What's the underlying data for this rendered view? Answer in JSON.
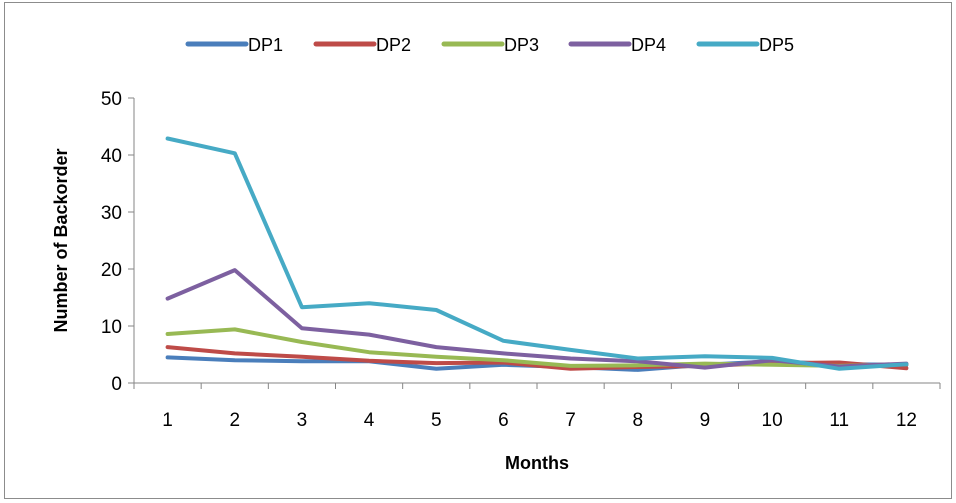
{
  "chart_data": {
    "type": "line",
    "title": "",
    "xlabel": "Months",
    "ylabel": "Number of Backorder",
    "x": [
      1,
      2,
      3,
      4,
      5,
      6,
      7,
      8,
      9,
      10,
      11,
      12
    ],
    "ylim": [
      0,
      50
    ],
    "yticks": [
      0,
      10,
      20,
      30,
      40,
      50
    ],
    "grid": false,
    "legend_position": "top",
    "series": [
      {
        "name": "DP1",
        "color": "#4a7ebb",
        "values": [
          4.5,
          4.0,
          3.8,
          3.8,
          2.5,
          3.2,
          2.8,
          2.3,
          3.2,
          3.8,
          3.3,
          3.2
        ]
      },
      {
        "name": "DP2",
        "color": "#be4b48",
        "values": [
          6.3,
          5.2,
          4.6,
          3.9,
          3.5,
          3.6,
          2.5,
          2.8,
          3.0,
          3.5,
          3.6,
          2.6
        ]
      },
      {
        "name": "DP3",
        "color": "#98b954",
        "values": [
          8.6,
          9.4,
          7.2,
          5.4,
          4.6,
          4.0,
          3.0,
          3.1,
          3.4,
          3.2,
          3.0,
          3.3
        ]
      },
      {
        "name": "DP4",
        "color": "#7d60a0",
        "values": [
          14.8,
          19.8,
          9.6,
          8.5,
          6.3,
          5.2,
          4.3,
          3.8,
          2.7,
          4.0,
          2.9,
          3.4
        ]
      },
      {
        "name": "DP5",
        "color": "#46aac5",
        "values": [
          42.9,
          40.3,
          13.3,
          14.0,
          12.8,
          7.4,
          5.8,
          4.3,
          4.7,
          4.4,
          2.5,
          3.3
        ]
      }
    ]
  }
}
